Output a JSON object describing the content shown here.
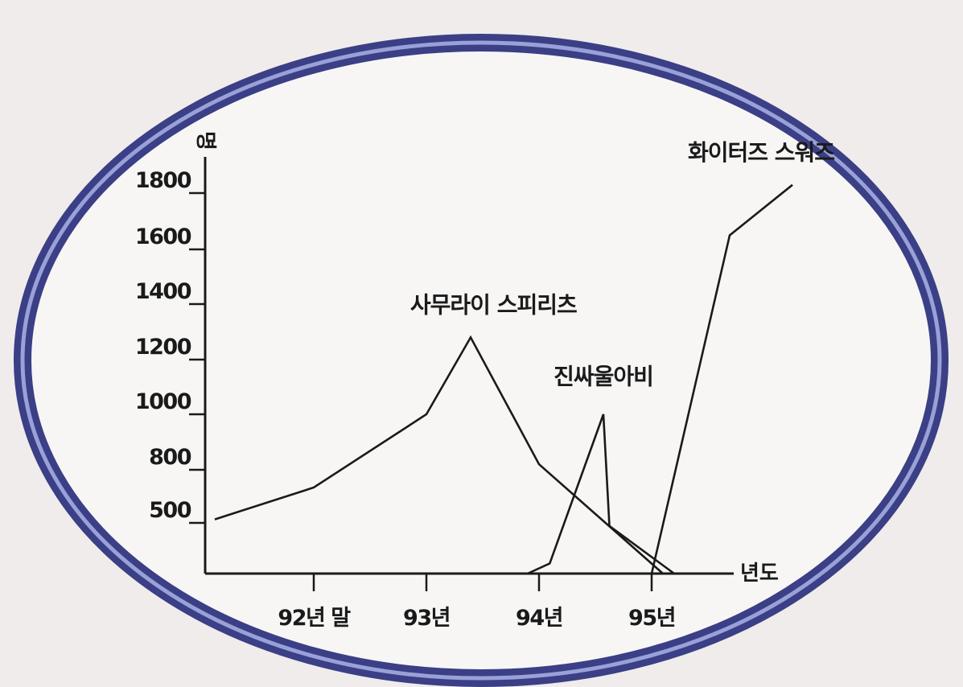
{
  "chart_data": {
    "type": "line",
    "ylabel": "명",
    "xlabel": "년도",
    "y_ticks": [
      500,
      800,
      1000,
      1200,
      1400,
      1600,
      1800
    ],
    "x_ticks": [
      {
        "x": 92.9,
        "label": "92년 말"
      },
      {
        "x": 93.0,
        "label": "93년"
      },
      {
        "x": 94.0,
        "label": "94년"
      },
      {
        "x": 95.0,
        "label": "95년"
      }
    ],
    "series": [
      {
        "name": "사무라이 스피리츠",
        "points": [
          [
            92.0,
            520
          ],
          [
            92.9,
            700
          ],
          [
            93.0,
            1000
          ],
          [
            93.4,
            1280
          ],
          [
            94.0,
            820
          ],
          [
            95.1,
            0
          ]
        ],
        "label_anchor": [
          93.6,
          1370
        ]
      },
      {
        "name": "진싸울아비",
        "points": [
          [
            93.9,
            0
          ],
          [
            94.1,
            100
          ],
          [
            94.6,
            1000
          ],
          [
            94.65,
            470
          ],
          [
            95.2,
            0
          ]
        ],
        "label_anchor": [
          94.6,
          1110
        ]
      },
      {
        "name": "화이터즈 스워즈",
        "points": [
          [
            95.0,
            0
          ],
          [
            95.7,
            1650
          ],
          [
            96.3,
            1830
          ]
        ],
        "label_anchor": [
          96.0,
          1920
        ]
      }
    ]
  },
  "frame": {
    "ellipse_stroke": "#3a3f86",
    "ellipse_highlight": "#9aa0d8",
    "line_color": "#1a1a1a"
  }
}
